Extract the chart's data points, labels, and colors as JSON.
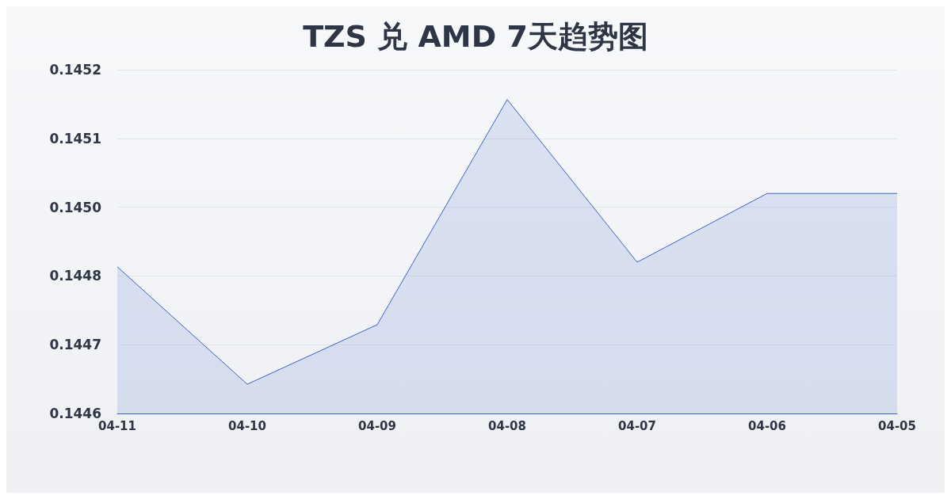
{
  "chart_data": {
    "type": "area",
    "title": "TZS 兑 AMD 7天趋势图",
    "categories": [
      "04-11",
      "04-10",
      "04-09",
      "04-08",
      "04-07",
      "04-06",
      "04-05"
    ],
    "values": [
      0.144856,
      0.144651,
      0.144755,
      0.145148,
      0.144864,
      0.144984,
      0.144984
    ],
    "color": "#3a62c9",
    "ylim": [
      0.1446,
      0.1452
    ],
    "yticks": [
      0.1446,
      {
        "value": 0.14472,
        "label": "0.1447"
      },
      {
        "value": 0.14484,
        "label": "0.1448"
      },
      {
        "value": 0.14496,
        "label": "0.1450"
      },
      {
        "value": 0.14508,
        "label": "0.1451"
      },
      0.1452
    ],
    "grid": "y",
    "marker": "none"
  }
}
